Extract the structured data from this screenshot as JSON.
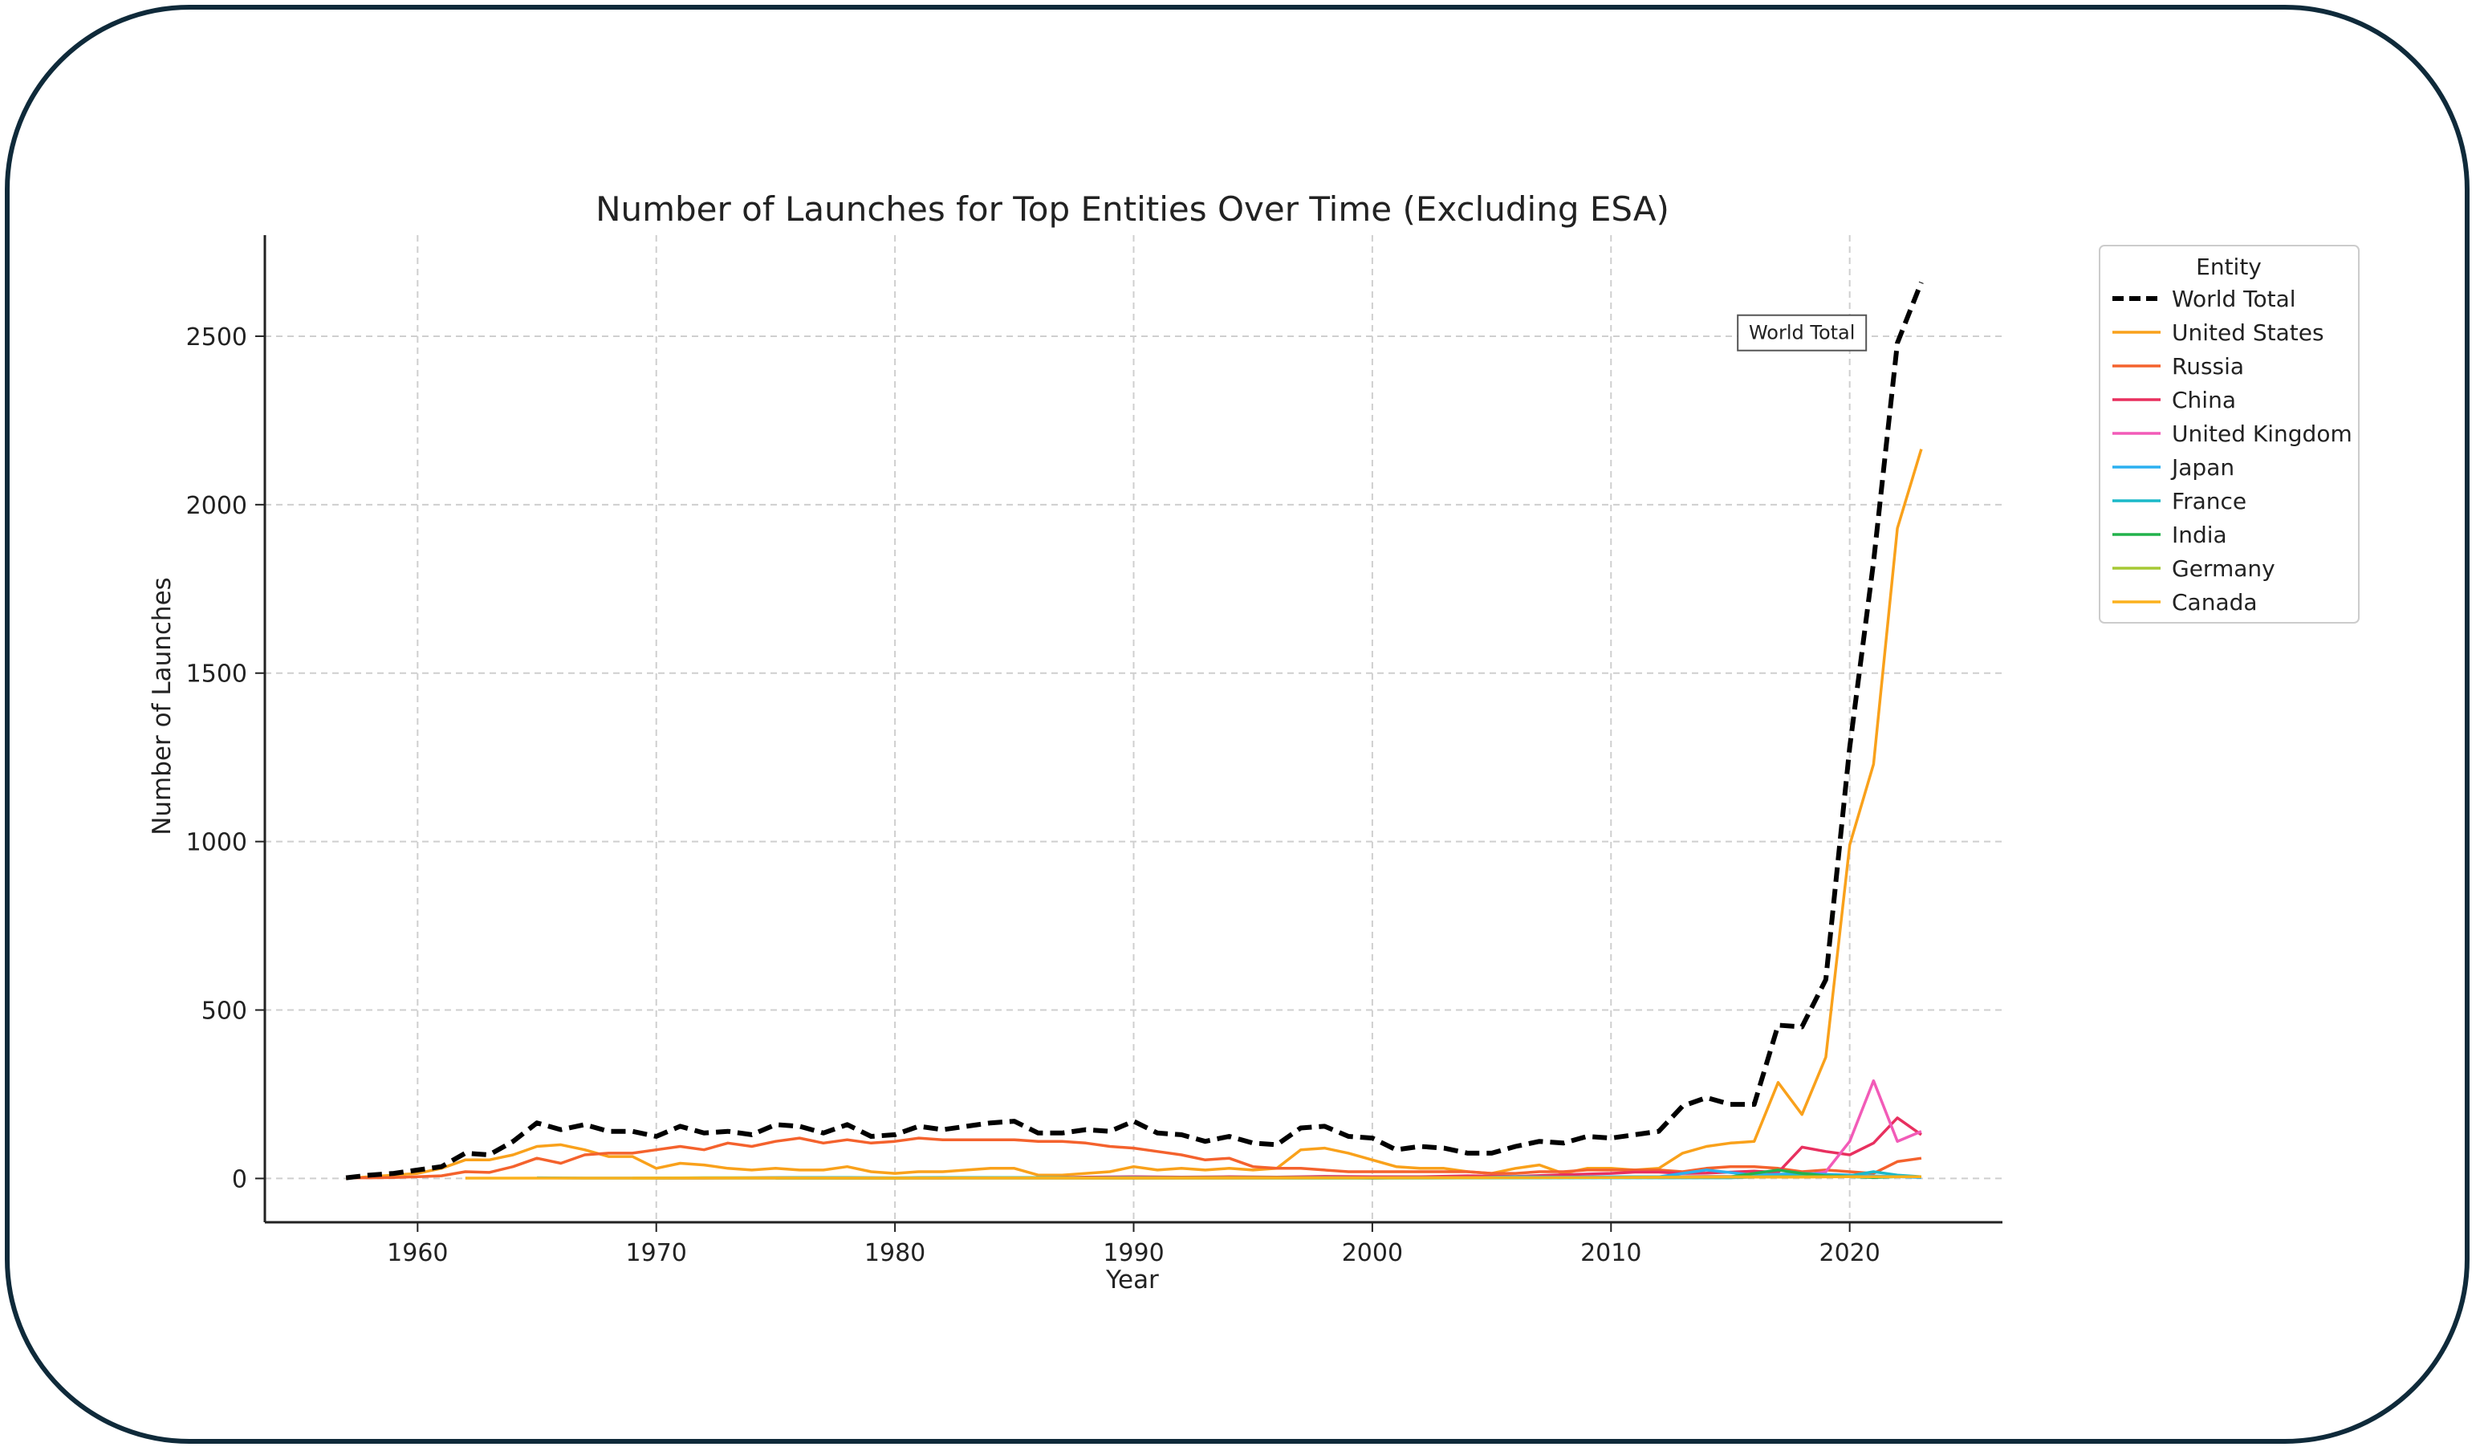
{
  "chart_data": {
    "type": "line",
    "title": "Number of Launches for Top Entities Over Time (Excluding ESA)",
    "xlabel": "Year",
    "ylabel": "Number of Launches",
    "xlim": [
      1953.6,
      2026.4
    ],
    "ylim": [
      -130,
      2800
    ],
    "xticks": [
      1960,
      1970,
      1980,
      1990,
      2000,
      2010,
      2020
    ],
    "yticks": [
      0,
      500,
      1000,
      1500,
      2000,
      2500
    ],
    "grid": true,
    "legend": {
      "title": "Entity",
      "placement": "outside-right"
    },
    "annotation": {
      "text": "World Total",
      "x": 2018,
      "y": 2510
    },
    "series": [
      {
        "name": "World Total",
        "color": "#000000",
        "dashed": true,
        "x": [
          1957,
          1958,
          1959,
          1960,
          1961,
          1962,
          1963,
          1964,
          1965,
          1966,
          1967,
          1968,
          1969,
          1970,
          1971,
          1972,
          1973,
          1974,
          1975,
          1976,
          1977,
          1978,
          1979,
          1980,
          1981,
          1982,
          1983,
          1984,
          1985,
          1986,
          1987,
          1988,
          1989,
          1990,
          1991,
          1992,
          1993,
          1994,
          1995,
          1996,
          1997,
          1998,
          1999,
          2000,
          2001,
          2002,
          2003,
          2004,
          2005,
          2006,
          2007,
          2008,
          2009,
          2010,
          2011,
          2012,
          2013,
          2014,
          2015,
          2016,
          2017,
          2018,
          2019,
          2020,
          2021,
          2022,
          2023
        ],
        "y": [
          2,
          10,
          15,
          25,
          35,
          75,
          70,
          110,
          165,
          145,
          160,
          140,
          140,
          125,
          155,
          135,
          140,
          130,
          160,
          155,
          135,
          160,
          125,
          130,
          155,
          145,
          155,
          165,
          170,
          135,
          135,
          145,
          140,
          170,
          135,
          130,
          110,
          125,
          105,
          100,
          150,
          155,
          125,
          120,
          85,
          95,
          90,
          75,
          75,
          95,
          110,
          105,
          125,
          120,
          130,
          140,
          215,
          240,
          220,
          220,
          455,
          450,
          590,
          1280,
          1830,
          2480,
          2660
        ]
      },
      {
        "name": "United States",
        "color": "#f9a11b",
        "x": [
          1957,
          1958,
          1959,
          1960,
          1961,
          1962,
          1963,
          1964,
          1965,
          1966,
          1967,
          1968,
          1969,
          1970,
          1971,
          1972,
          1973,
          1974,
          1975,
          1976,
          1977,
          1978,
          1979,
          1980,
          1981,
          1982,
          1983,
          1984,
          1985,
          1986,
          1987,
          1988,
          1989,
          1990,
          1991,
          1992,
          1993,
          1994,
          1995,
          1996,
          1997,
          1998,
          1999,
          2000,
          2001,
          2002,
          2003,
          2004,
          2005,
          2006,
          2007,
          2008,
          2009,
          2010,
          2011,
          2012,
          2013,
          2014,
          2015,
          2016,
          2017,
          2018,
          2019,
          2020,
          2021,
          2022,
          2023
        ],
        "y": [
          0,
          5,
          10,
          15,
          30,
          55,
          55,
          70,
          95,
          100,
          85,
          65,
          65,
          30,
          45,
          40,
          30,
          25,
          30,
          25,
          25,
          35,
          20,
          15,
          20,
          20,
          25,
          30,
          30,
          10,
          10,
          15,
          20,
          35,
          25,
          30,
          25,
          30,
          25,
          30,
          85,
          90,
          75,
          55,
          35,
          30,
          30,
          20,
          15,
          30,
          40,
          15,
          30,
          30,
          25,
          30,
          75,
          95,
          105,
          110,
          285,
          190,
          360,
          990,
          1230,
          1930,
          2165
        ]
      },
      {
        "name": "Russia",
        "color": "#f4622d",
        "x": [
          1957,
          1958,
          1959,
          1960,
          1961,
          1962,
          1963,
          1964,
          1965,
          1966,
          1967,
          1968,
          1969,
          1970,
          1971,
          1972,
          1973,
          1974,
          1975,
          1976,
          1977,
          1978,
          1979,
          1980,
          1981,
          1982,
          1983,
          1984,
          1985,
          1986,
          1987,
          1988,
          1989,
          1990,
          1991,
          1992,
          1993,
          1994,
          1995,
          1996,
          1997,
          1998,
          1999,
          2000,
          2001,
          2002,
          2003,
          2004,
          2005,
          2006,
          2007,
          2008,
          2009,
          2010,
          2011,
          2012,
          2013,
          2014,
          2015,
          2016,
          2017,
          2018,
          2019,
          2020,
          2021,
          2022,
          2023
        ],
        "y": [
          2,
          2,
          3,
          5,
          8,
          20,
          18,
          35,
          60,
          45,
          70,
          75,
          75,
          85,
          95,
          85,
          105,
          95,
          110,
          120,
          105,
          115,
          105,
          110,
          120,
          115,
          115,
          115,
          115,
          110,
          110,
          105,
          95,
          90,
          80,
          70,
          55,
          60,
          35,
          30,
          30,
          25,
          20,
          20,
          20,
          20,
          20,
          20,
          15,
          15,
          20,
          20,
          25,
          25,
          25,
          25,
          20,
          30,
          35,
          35,
          30,
          20,
          25,
          20,
          15,
          50,
          60
        ]
      },
      {
        "name": "China",
        "color": "#e8305f",
        "x": [
          1970,
          1972,
          1974,
          1976,
          1978,
          1980,
          1982,
          1984,
          1986,
          1988,
          1990,
          1992,
          1994,
          1996,
          1998,
          2000,
          2002,
          2004,
          2006,
          2008,
          2010,
          2011,
          2012,
          2013,
          2014,
          2015,
          2016,
          2017,
          2018,
          2019,
          2020,
          2021,
          2022,
          2023
        ],
        "y": [
          1,
          1,
          2,
          3,
          1,
          1,
          1,
          3,
          2,
          4,
          5,
          4,
          5,
          4,
          6,
          5,
          5,
          8,
          6,
          11,
          15,
          19,
          19,
          15,
          16,
          19,
          22,
          18,
          93,
          80,
          70,
          105,
          180,
          130
        ]
      },
      {
        "name": "United Kingdom",
        "color": "#f25bb8",
        "x": [
          2010,
          2012,
          2014,
          2016,
          2017,
          2018,
          2019,
          2020,
          2021,
          2022,
          2023
        ],
        "y": [
          5,
          5,
          6,
          6,
          10,
          8,
          20,
          110,
          290,
          110,
          140
        ]
      },
      {
        "name": "Japan",
        "color": "#2bb0f0",
        "x": [
          1970,
          1972,
          1974,
          1976,
          1978,
          1980,
          1982,
          1984,
          1986,
          1988,
          1990,
          1992,
          1994,
          1996,
          1998,
          2000,
          2002,
          2004,
          2006,
          2008,
          2010,
          2012,
          2014,
          2016,
          2018,
          2020,
          2022,
          2023
        ],
        "y": [
          1,
          2,
          2,
          3,
          3,
          2,
          3,
          3,
          3,
          2,
          3,
          2,
          2,
          2,
          3,
          1,
          3,
          2,
          5,
          4,
          5,
          5,
          25,
          10,
          15,
          10,
          5,
          3
        ]
      },
      {
        "name": "France",
        "color": "#1ab9c9",
        "x": [
          1965,
          1967,
          1969,
          1971,
          1975,
          1985,
          1995,
          2005,
          2015,
          2019,
          2020,
          2021,
          2022,
          2023
        ],
        "y": [
          2,
          1,
          1,
          1,
          1,
          1,
          2,
          2,
          2,
          10,
          8,
          20,
          10,
          5
        ]
      },
      {
        "name": "India",
        "color": "#22b24c",
        "x": [
          1975,
          1979,
          1980,
          1981,
          1990,
          2000,
          2005,
          2010,
          2015,
          2017,
          2018,
          2019,
          2020,
          2021,
          2022,
          2023
        ],
        "y": [
          1,
          1,
          1,
          2,
          1,
          1,
          2,
          3,
          5,
          25,
          15,
          8,
          5,
          3,
          5,
          5
        ]
      },
      {
        "name": "Germany",
        "color": "#a6c934",
        "x": [
          1969,
          1972,
          1975,
          1980,
          1985,
          1990,
          1995,
          2000,
          2005,
          2010,
          2015,
          2020,
          2023
        ],
        "y": [
          1,
          2,
          2,
          1,
          2,
          2,
          3,
          2,
          3,
          3,
          5,
          5,
          5
        ]
      },
      {
        "name": "Canada",
        "color": "#fbb11d",
        "x": [
          1962,
          1965,
          1970,
          1975,
          1980,
          1990,
          2000,
          2010,
          2015,
          2018,
          2020,
          2023
        ],
        "y": [
          1,
          1,
          1,
          1,
          1,
          1,
          2,
          3,
          4,
          4,
          5,
          5
        ]
      }
    ]
  }
}
